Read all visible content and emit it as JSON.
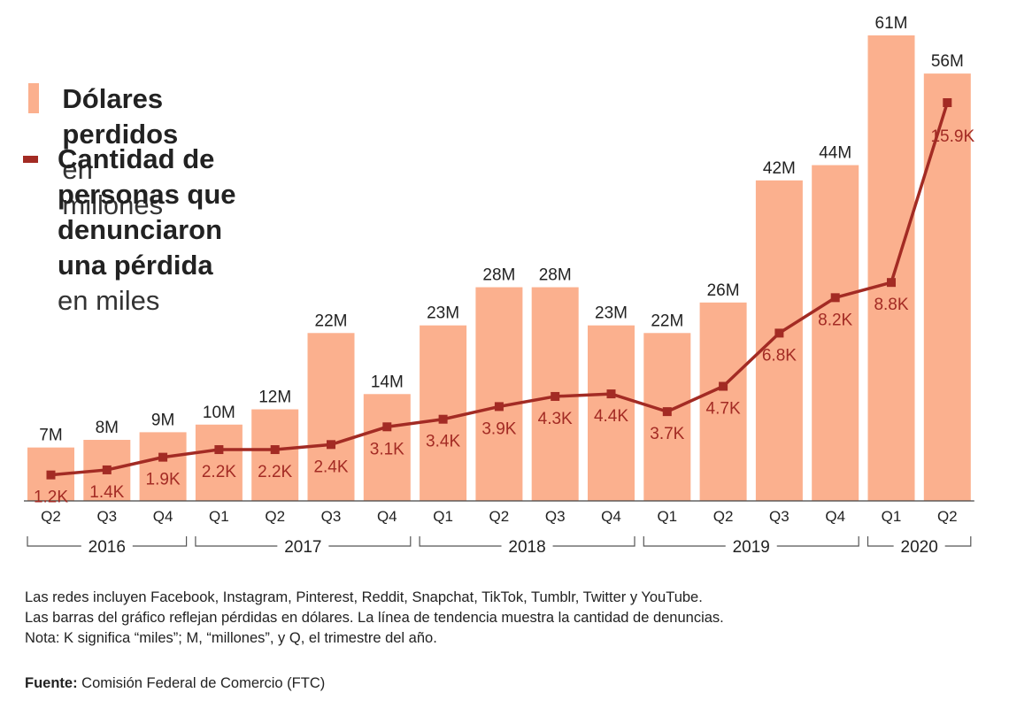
{
  "legend": {
    "bars_bold": "Dólares perdidos",
    "bars_light": "en millones",
    "line_bold_1": "Cantidad de personas que denunciaron",
    "line_bold_2": "una pérdida",
    "line_light": "en miles"
  },
  "notes": [
    "Las redes incluyen Facebook, Instagram, Pinterest, Reddit, Snapchat, TikTok, Tumblr, Twitter y YouTube.",
    "Las barras del gráfico reflejan pérdidas en dólares. La línea de tendencia muestra la cantidad de denuncias.",
    "Nota: K significa “miles”; M, “millones”, y Q, el trimestre del año."
  ],
  "source": {
    "label": "Fuente:",
    "text": " Comisión Federal de Comercio (FTC)"
  },
  "colors": {
    "bar": "#fbb08e",
    "line": "#a32b24",
    "axis": "#555555"
  },
  "chart_data": {
    "type": "bar",
    "categories": [
      "Q2",
      "Q3",
      "Q4",
      "Q1",
      "Q2",
      "Q3",
      "Q4",
      "Q1",
      "Q2",
      "Q3",
      "Q4",
      "Q1",
      "Q2",
      "Q3",
      "Q4",
      "Q1",
      "Q2"
    ],
    "years": [
      {
        "label": "2016",
        "start": 0,
        "end": 2
      },
      {
        "label": "2017",
        "start": 3,
        "end": 6
      },
      {
        "label": "2018",
        "start": 7,
        "end": 10
      },
      {
        "label": "2019",
        "start": 11,
        "end": 14
      },
      {
        "label": "2020",
        "start": 15,
        "end": 16
      }
    ],
    "series": [
      {
        "name": "Dólares perdidos en millones",
        "type": "bar",
        "values": [
          7,
          8,
          9,
          10,
          12,
          22,
          14,
          23,
          28,
          28,
          23,
          22,
          26,
          42,
          44,
          61,
          56
        ],
        "labels": [
          "7M",
          "8M",
          "9M",
          "10M",
          "12M",
          "22M",
          "14M",
          "23M",
          "28M",
          "28M",
          "23M",
          "22M",
          "26M",
          "42M",
          "44M",
          "61M",
          "56M"
        ]
      },
      {
        "name": "Cantidad de personas que denunciaron una pérdida en miles",
        "type": "line",
        "values": [
          1.2,
          1.4,
          1.9,
          2.2,
          2.2,
          2.4,
          3.1,
          3.4,
          3.9,
          4.3,
          4.4,
          3.7,
          4.7,
          6.8,
          8.2,
          8.8,
          15.9
        ],
        "labels": [
          "1.2K",
          "1.4K",
          "1.9K",
          "2.2K",
          "2.2K",
          "2.4K",
          "3.1K",
          "3.4K",
          "3.9K",
          "4.3K",
          "4.4K",
          "3.7K",
          "4.7K",
          "6.8K",
          "8.2K",
          "8.8K",
          "15.9K"
        ]
      }
    ],
    "ylim_bars": [
      0,
      61
    ],
    "ylim_line": [
      0,
      15.9
    ],
    "grid": false
  }
}
